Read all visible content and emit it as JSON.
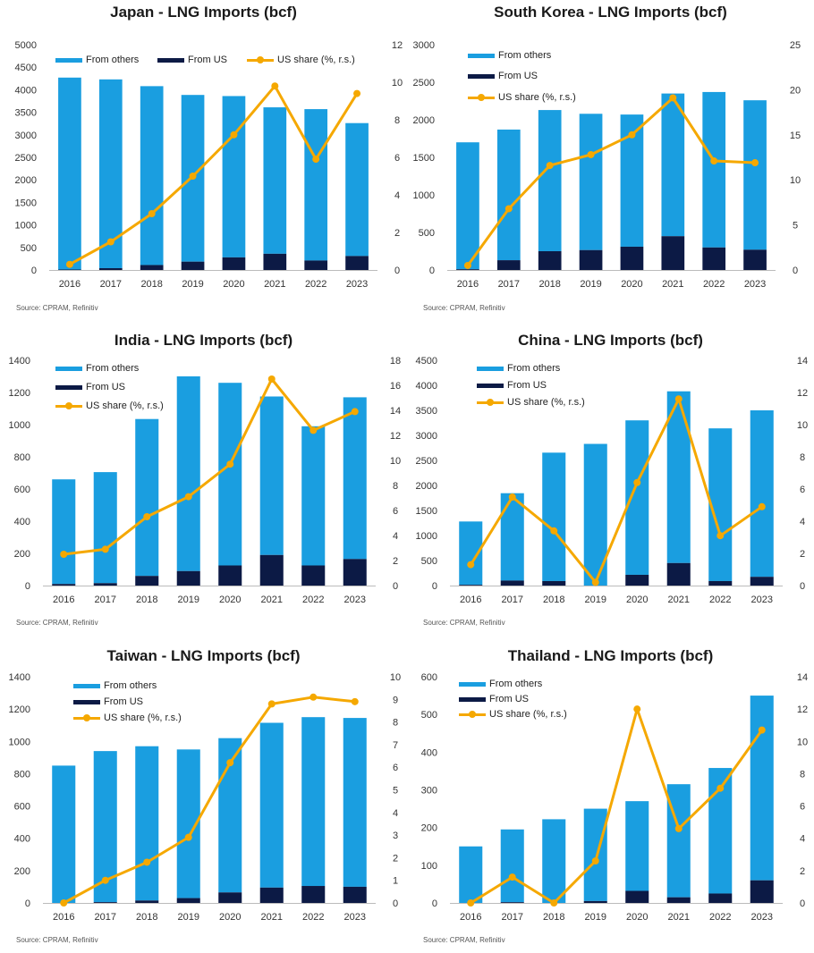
{
  "colors": {
    "others": "#1a9ee0",
    "us": "#0c1a45",
    "share": "#f5a800",
    "axis": "#444444"
  },
  "charts": [
    {
      "title": "Japan - LNG Imports (bcf)",
      "source": "Source: CPRAM, Refinitiv",
      "legend": {
        "others": "From others",
        "us": "From US",
        "share": "US share (%, r.s.)"
      },
      "categories": [
        "2016",
        "2017",
        "2018",
        "2019",
        "2020",
        "2021",
        "2022",
        "2023"
      ],
      "left_axis": {
        "min": 0,
        "max": 5000,
        "ticks": [
          0,
          500,
          1000,
          1500,
          2000,
          2500,
          3000,
          3500,
          4000,
          4500,
          5000
        ]
      },
      "right_axis": {
        "min": 0,
        "max": 12,
        "ticks": [
          0,
          2,
          4,
          6,
          8,
          10,
          12
        ]
      },
      "from_us": [
        10,
        40,
        110,
        185,
        280,
        360,
        210,
        310
      ],
      "from_others": [
        4260,
        4190,
        3970,
        3700,
        3580,
        3250,
        3360,
        2950
      ],
      "us_share": [
        0.3,
        1.5,
        3.0,
        5.0,
        7.2,
        9.8,
        5.9,
        9.4
      ]
    },
    {
      "title": "South Korea - LNG Imports (bcf)",
      "source": "Source: CPRAM, Refinitiv",
      "legend": {
        "others": "From others",
        "us": "From US",
        "share": "US share (%, r.s.)"
      },
      "categories": [
        "2016",
        "2017",
        "2018",
        "2019",
        "2020",
        "2021",
        "2022",
        "2023"
      ],
      "left_axis": {
        "min": 0,
        "max": 3000,
        "ticks": [
          0,
          500,
          1000,
          1500,
          2000,
          2500,
          3000
        ]
      },
      "right_axis": {
        "min": 0,
        "max": 25,
        "ticks": [
          0,
          5,
          10,
          15,
          20,
          25
        ]
      },
      "from_us": [
        10,
        130,
        250,
        265,
        310,
        450,
        300,
        270
      ],
      "from_others": [
        1690,
        1740,
        1880,
        1815,
        1760,
        1900,
        2070,
        1990
      ],
      "us_share": [
        0.5,
        6.8,
        11.6,
        12.8,
        15.0,
        19.1,
        12.1,
        11.9
      ]
    },
    {
      "title": "India - LNG Imports (bcf)",
      "source": "Source: CPRAM, Refinitiv",
      "legend": {
        "others": "From others",
        "us": "From US",
        "share": "US share (%, r.s.)"
      },
      "categories": [
        "2016",
        "2017",
        "2018",
        "2019",
        "2020",
        "2021",
        "2022",
        "2023"
      ],
      "left_axis": {
        "min": 0,
        "max": 1400,
        "ticks": [
          0,
          200,
          400,
          600,
          800,
          1000,
          1200,
          1400
        ]
      },
      "right_axis": {
        "min": 0,
        "max": 18,
        "ticks": [
          0,
          2,
          4,
          6,
          8,
          10,
          12,
          14,
          16,
          18
        ]
      },
      "from_us": [
        10,
        15,
        60,
        90,
        125,
        190,
        125,
        165
      ],
      "from_others": [
        650,
        690,
        975,
        1210,
        1135,
        985,
        865,
        1005
      ],
      "us_share": [
        2.5,
        2.9,
        5.5,
        7.1,
        9.7,
        16.5,
        12.4,
        13.9
      ]
    },
    {
      "title": "China - LNG Imports (bcf)",
      "source": "Source: CPRAM, Refinitiv",
      "legend": {
        "others": "From others",
        "us": "From US",
        "share": "US share (%, r.s.)"
      },
      "categories": [
        "2016",
        "2017",
        "2018",
        "2019",
        "2020",
        "2021",
        "2022",
        "2023"
      ],
      "left_axis": {
        "min": 0,
        "max": 4500,
        "ticks": [
          0,
          500,
          1000,
          1500,
          2000,
          2500,
          3000,
          3500,
          4000,
          4500
        ]
      },
      "right_axis": {
        "min": 0,
        "max": 14,
        "ticks": [
          0,
          2,
          4,
          6,
          8,
          10,
          12,
          14
        ]
      },
      "from_us": [
        15,
        100,
        90,
        0,
        215,
        450,
        90,
        175
      ],
      "from_others": [
        1265,
        1745,
        2565,
        2830,
        3085,
        3430,
        3050,
        3325
      ],
      "us_share": [
        1.3,
        5.5,
        3.4,
        0.2,
        6.4,
        11.6,
        3.1,
        4.9
      ]
    },
    {
      "title": "Taiwan - LNG Imports (bcf)",
      "source": "Source: CPRAM, Refinitiv",
      "legend": {
        "others": "From others",
        "us": "From US",
        "share": "US share (%, r.s.)"
      },
      "categories": [
        "2016",
        "2017",
        "2018",
        "2019",
        "2020",
        "2021",
        "2022",
        "2023"
      ],
      "left_axis": {
        "min": 0,
        "max": 1400,
        "ticks": [
          0,
          200,
          400,
          600,
          800,
          1000,
          1200,
          1400
        ]
      },
      "right_axis": {
        "min": 0,
        "max": 10,
        "ticks": [
          0,
          1,
          2,
          3,
          4,
          5,
          6,
          7,
          8,
          9,
          10
        ]
      },
      "from_us": [
        0,
        5,
        15,
        30,
        65,
        95,
        105,
        100
      ],
      "from_others": [
        850,
        935,
        955,
        920,
        955,
        1020,
        1045,
        1045
      ],
      "us_share": [
        0,
        1.0,
        1.8,
        2.9,
        6.2,
        8.8,
        9.1,
        8.9
      ]
    },
    {
      "title": "Thailand - LNG Imports (bcf)",
      "source": "Source: CPRAM, Refinitiv",
      "legend": {
        "others": "From others",
        "us": "From US",
        "share": "US share (%, r.s.)"
      },
      "categories": [
        "2016",
        "2017",
        "2018",
        "2019",
        "2020",
        "2021",
        "2022",
        "2023"
      ],
      "left_axis": {
        "min": 0,
        "max": 600,
        "ticks": [
          0,
          100,
          200,
          300,
          400,
          500,
          600
        ]
      },
      "right_axis": {
        "min": 0,
        "max": 14,
        "ticks": [
          0,
          2,
          4,
          6,
          8,
          10,
          12,
          14
        ]
      },
      "from_us": [
        0,
        2,
        0,
        5,
        32,
        15,
        25,
        60
      ],
      "from_others": [
        150,
        193,
        222,
        245,
        238,
        300,
        333,
        490
      ],
      "us_share": [
        0,
        1.6,
        0,
        2.6,
        12.0,
        4.6,
        7.1,
        10.7
      ]
    }
  ],
  "chart_data": [
    {
      "type": "bar",
      "title": "Japan - LNG Imports (bcf)",
      "categories": [
        "2016",
        "2017",
        "2018",
        "2019",
        "2020",
        "2021",
        "2022",
        "2023"
      ],
      "series": [
        {
          "name": "From others",
          "values": [
            4260,
            4190,
            3970,
            3700,
            3580,
            3250,
            3360,
            2950
          ]
        },
        {
          "name": "From US",
          "values": [
            10,
            40,
            110,
            185,
            280,
            360,
            210,
            310
          ]
        },
        {
          "name": "US share (%, r.s.)",
          "values": [
            0.3,
            1.5,
            3.0,
            5.0,
            7.2,
            9.8,
            5.9,
            9.4
          ]
        }
      ],
      "ylim": [
        0,
        5000
      ],
      "y2lim": [
        0,
        12
      ]
    },
    {
      "type": "bar",
      "title": "South Korea - LNG Imports (bcf)",
      "categories": [
        "2016",
        "2017",
        "2018",
        "2019",
        "2020",
        "2021",
        "2022",
        "2023"
      ],
      "series": [
        {
          "name": "From others",
          "values": [
            1690,
            1740,
            1880,
            1815,
            1760,
            1900,
            2070,
            1990
          ]
        },
        {
          "name": "From US",
          "values": [
            10,
            130,
            250,
            265,
            310,
            450,
            300,
            270
          ]
        },
        {
          "name": "US share (%, r.s.)",
          "values": [
            0.5,
            6.8,
            11.6,
            12.8,
            15.0,
            19.1,
            12.1,
            11.9
          ]
        }
      ],
      "ylim": [
        0,
        3000
      ],
      "y2lim": [
        0,
        25
      ]
    },
    {
      "type": "bar",
      "title": "India - LNG Imports (bcf)",
      "categories": [
        "2016",
        "2017",
        "2018",
        "2019",
        "2020",
        "2021",
        "2022",
        "2023"
      ],
      "series": [
        {
          "name": "From others",
          "values": [
            650,
            690,
            975,
            1210,
            1135,
            985,
            865,
            1005
          ]
        },
        {
          "name": "From US",
          "values": [
            10,
            15,
            60,
            90,
            125,
            190,
            125,
            165
          ]
        },
        {
          "name": "US share (%, r.s.)",
          "values": [
            2.5,
            2.9,
            5.5,
            7.1,
            9.7,
            16.5,
            12.4,
            13.9
          ]
        }
      ],
      "ylim": [
        0,
        1400
      ],
      "y2lim": [
        0,
        18
      ]
    },
    {
      "type": "bar",
      "title": "China - LNG Imports (bcf)",
      "categories": [
        "2016",
        "2017",
        "2018",
        "2019",
        "2020",
        "2021",
        "2022",
        "2023"
      ],
      "series": [
        {
          "name": "From others",
          "values": [
            1265,
            1745,
            2565,
            2830,
            3085,
            3430,
            3050,
            3325
          ]
        },
        {
          "name": "From US",
          "values": [
            15,
            100,
            90,
            0,
            215,
            450,
            90,
            175
          ]
        },
        {
          "name": "US share (%, r.s.)",
          "values": [
            1.3,
            5.5,
            3.4,
            0.2,
            6.4,
            11.6,
            3.1,
            4.9
          ]
        }
      ],
      "ylim": [
        0,
        4500
      ],
      "y2lim": [
        0,
        14
      ]
    },
    {
      "type": "bar",
      "title": "Taiwan - LNG Imports (bcf)",
      "categories": [
        "2016",
        "2017",
        "2018",
        "2019",
        "2020",
        "2021",
        "2022",
        "2023"
      ],
      "series": [
        {
          "name": "From others",
          "values": [
            850,
            935,
            955,
            920,
            955,
            1020,
            1045,
            1045
          ]
        },
        {
          "name": "From US",
          "values": [
            0,
            5,
            15,
            30,
            65,
            95,
            105,
            100
          ]
        },
        {
          "name": "US share (%, r.s.)",
          "values": [
            0,
            1.0,
            1.8,
            2.9,
            6.2,
            8.8,
            9.1,
            8.9
          ]
        }
      ],
      "ylim": [
        0,
        1400
      ],
      "y2lim": [
        0,
        10
      ]
    },
    {
      "type": "bar",
      "title": "Thailand - LNG Imports (bcf)",
      "categories": [
        "2016",
        "2017",
        "2018",
        "2019",
        "2020",
        "2021",
        "2022",
        "2023"
      ],
      "series": [
        {
          "name": "From others",
          "values": [
            150,
            193,
            222,
            245,
            238,
            300,
            333,
            490
          ]
        },
        {
          "name": "From US",
          "values": [
            0,
            2,
            0,
            5,
            32,
            15,
            25,
            60
          ]
        },
        {
          "name": "US share (%, r.s.)",
          "values": [
            0,
            1.6,
            0,
            2.6,
            12.0,
            4.6,
            7.1,
            10.7
          ]
        }
      ],
      "ylim": [
        0,
        600
      ],
      "y2lim": [
        0,
        14
      ]
    }
  ]
}
